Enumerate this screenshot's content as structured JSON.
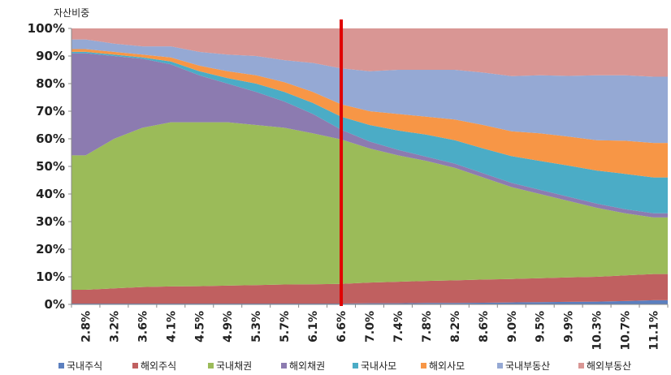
{
  "chart_data": {
    "type": "area",
    "stacked": true,
    "normalized": true,
    "ylabel": "자산비중",
    "xlabel": "",
    "ylim": [
      0,
      100
    ],
    "yticks": [
      "0%",
      "10%",
      "20%",
      "30%",
      "40%",
      "50%",
      "60%",
      "70%",
      "80%",
      "90%",
      "100%"
    ],
    "x_tick_labels": [
      "2.8%",
      "3.2%",
      "3.6%",
      "4.1%",
      "4.5%",
      "4.9%",
      "5.3%",
      "5.7%",
      "6.1%",
      "6.6%",
      "7.0%",
      "7.4%",
      "7.8%",
      "8.2%",
      "8.6%",
      "9.0%",
      "9.5%",
      "9.9%",
      "10.3%",
      "10.7%",
      "11.1%"
    ],
    "legend_position": "bottom",
    "grid": false,
    "vertical_marker": {
      "at_tick": "6.6%",
      "color": "#e00000"
    },
    "series": [
      {
        "name": "국내주식",
        "color": "#5b7fbf",
        "values": [
          0.3,
          0.3,
          0.3,
          0.3,
          0.3,
          0.3,
          0.3,
          0.3,
          0.3,
          0.3,
          0.4,
          0.4,
          0.5,
          0.5,
          0.6,
          0.7,
          0.8,
          0.9,
          1.0,
          1.2,
          1.5
        ]
      },
      {
        "name": "해외주식",
        "color": "#c06060",
        "values": [
          5.0,
          5.5,
          6.0,
          6.2,
          6.3,
          6.5,
          6.7,
          6.9,
          7.0,
          7.1,
          7.5,
          7.8,
          8.0,
          8.2,
          8.4,
          8.5,
          8.7,
          8.9,
          9.0,
          9.3,
          9.5
        ]
      },
      {
        "name": "국내채권",
        "color": "#9bbb59",
        "values": [
          48.7,
          54.2,
          57.7,
          59.5,
          59.4,
          59.2,
          58.0,
          56.8,
          54.7,
          52.4,
          48.6,
          45.8,
          43.5,
          40.8,
          37.0,
          33.3,
          30.5,
          27.7,
          25.0,
          22.5,
          20.5
        ]
      },
      {
        "name": "해외채권",
        "color": "#8c7bb0",
        "values": [
          37.0,
          30.0,
          25.0,
          21.0,
          17.0,
          14.0,
          12.0,
          9.5,
          7.0,
          3.5,
          2.5,
          2.0,
          1.5,
          1.5,
          1.5,
          1.5,
          1.5,
          1.5,
          1.5,
          1.5,
          1.5
        ]
      },
      {
        "name": "국내사모",
        "color": "#4bacc6",
        "values": [
          0.5,
          0.5,
          0.5,
          1.0,
          1.5,
          2.0,
          3.0,
          3.5,
          4.0,
          4.7,
          6.0,
          7.0,
          8.0,
          8.5,
          9.0,
          9.7,
          10.5,
          11.3,
          12.0,
          12.8,
          13.0
        ]
      },
      {
        "name": "해외사모",
        "color": "#f79646",
        "values": [
          1.0,
          1.0,
          1.0,
          1.5,
          2.0,
          2.5,
          3.0,
          3.5,
          4.0,
          4.5,
          5.0,
          6.0,
          6.5,
          7.5,
          8.5,
          9.0,
          10.0,
          10.5,
          11.0,
          12.0,
          12.5
        ]
      },
      {
        "name": "국내부동산",
        "color": "#95a9d4",
        "values": [
          3.5,
          3.0,
          3.0,
          4.0,
          5.0,
          6.0,
          7.0,
          8.0,
          10.5,
          13.0,
          14.5,
          16.0,
          17.0,
          18.0,
          19.0,
          20.0,
          21.0,
          22.0,
          23.5,
          23.7,
          24.0
        ]
      },
      {
        "name": "해외부동산",
        "color": "#d99694",
        "values": [
          4.0,
          5.5,
          6.5,
          6.5,
          8.5,
          9.5,
          10.0,
          11.5,
          12.5,
          14.5,
          15.5,
          15.0,
          15.0,
          15.0,
          16.0,
          17.3,
          17.0,
          17.2,
          17.0,
          17.0,
          17.5
        ]
      }
    ]
  }
}
